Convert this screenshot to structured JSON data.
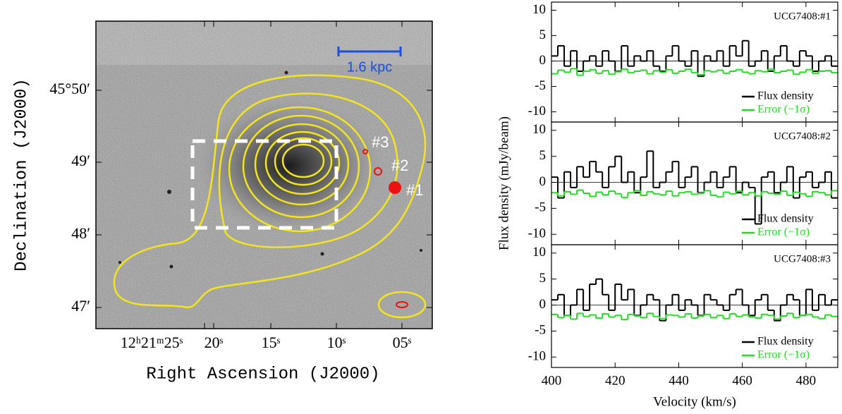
{
  "chart_data": [
    {
      "type": "image",
      "xlabel": "Right Ascension (J2000)",
      "ylabel": "Declination (J2000)",
      "xticks": [
        "12ʰ21ᵐ25ˢ",
        "20ˢ",
        "15ˢ",
        "10ˢ",
        "05ˢ"
      ],
      "yticks": [
        "45°50′",
        "49′",
        "48′",
        "47′"
      ],
      "scale_bar": "1.6 kpc",
      "labels": [
        "#1",
        "#2",
        "#3"
      ]
    },
    {
      "type": "line",
      "step": true,
      "title": "UCG7408:#1",
      "x": [
        400,
        402,
        404,
        406,
        408,
        410,
        412,
        414,
        416,
        418,
        420,
        422,
        424,
        426,
        428,
        430,
        432,
        434,
        436,
        438,
        440,
        442,
        444,
        446,
        448,
        450,
        452,
        454,
        456,
        458,
        460,
        462,
        464,
        466,
        468,
        470,
        472,
        474,
        476,
        478,
        480,
        482,
        484,
        486,
        488
      ],
      "series": [
        {
          "name": "Flux density",
          "color": "#000000",
          "values": [
            1,
            3,
            -1,
            2,
            -2,
            0,
            1,
            -1,
            2,
            0,
            -2,
            3,
            -1,
            1,
            0,
            2,
            -1,
            -2,
            1,
            3,
            0,
            -1,
            2,
            -3,
            1,
            0,
            2,
            -1,
            3,
            1,
            4,
            -1,
            0,
            2,
            -2,
            1,
            3,
            0,
            -1,
            2,
            1,
            -2,
            0,
            1,
            -1
          ]
        },
        {
          "name": "Error (−1σ)",
          "color": "#22dd22",
          "values": [
            -2.5,
            -1.8,
            -2.2,
            -1.5,
            -2.8,
            -2,
            -1.7,
            -2.4,
            -1.9,
            -2.6,
            -2.1,
            -1.6,
            -2.3,
            -2,
            -1.8,
            -2.5,
            -1.9,
            -2.2,
            -1.7,
            -2.4,
            -2,
            -1.6,
            -2.3,
            -2.7,
            -1.9,
            -2.1,
            -1.8,
            -2.4,
            -2,
            -1.7,
            -2.2,
            -2.5,
            -1.9,
            -2.1,
            -1.6,
            -2.3,
            -2,
            -1.8,
            -2.6,
            -2.2,
            -1.7,
            -2.4,
            -2,
            -1.9,
            -2.3
          ]
        }
      ],
      "xlim": [
        400,
        490
      ],
      "ylim": [
        -12,
        11.6
      ],
      "xticks": [
        400,
        420,
        440,
        460,
        480
      ],
      "yticks": [
        -10,
        -5,
        0,
        5,
        10
      ],
      "legend": "lower right"
    },
    {
      "type": "line",
      "step": true,
      "title": "UCG7408:#2",
      "ylabel": "Flux density (mJy/beam)",
      "x": [
        400,
        402,
        404,
        406,
        408,
        410,
        412,
        414,
        416,
        418,
        420,
        422,
        424,
        426,
        428,
        430,
        432,
        434,
        436,
        438,
        440,
        442,
        444,
        446,
        448,
        450,
        452,
        454,
        456,
        458,
        460,
        462,
        464,
        466,
        468,
        470,
        472,
        474,
        476,
        478,
        480,
        482,
        484,
        486,
        488
      ],
      "series": [
        {
          "name": "Flux density",
          "color": "#000000",
          "values": [
            1,
            -3,
            2,
            -1,
            3,
            1,
            4,
            2,
            -1,
            3,
            5,
            0,
            2,
            -2,
            1,
            6,
            -1,
            0,
            2,
            4,
            -1,
            1,
            3,
            -2,
            0,
            2,
            -1,
            1,
            3,
            -2,
            0,
            -1,
            -8,
            1,
            2,
            -2,
            0,
            3,
            -3,
            1,
            2,
            -1,
            0,
            2,
            -3
          ]
        },
        {
          "name": "Error (−1σ)",
          "color": "#22dd22",
          "values": [
            -2,
            -2.6,
            -1.8,
            -2.3,
            -1.5,
            -2.1,
            -2.7,
            -1.9,
            -2.4,
            -1.7,
            -2.2,
            -2.9,
            -2,
            -1.6,
            -2.5,
            -1.8,
            -2.2,
            -2.4,
            -1.7,
            -2.6,
            -2,
            -1.8,
            -2.3,
            -2.1,
            -1.6,
            -2.5,
            -2.8,
            -1.9,
            -2.2,
            -1.7,
            -2.4,
            -2,
            -2.6,
            -1.8,
            -2.1,
            -2.3,
            -1.7,
            -2.5,
            -1.9,
            -2.2,
            -2.7,
            -1.8,
            -2,
            -2.4,
            -1.6
          ]
        }
      ],
      "xlim": [
        400,
        490
      ],
      "ylim": [
        -12,
        11.6
      ],
      "xticks": [
        400,
        420,
        440,
        460,
        480
      ],
      "yticks": [
        -10,
        -5,
        0,
        5,
        10
      ],
      "legend": "lower right"
    },
    {
      "type": "line",
      "step": true,
      "title": "UCG7408:#3",
      "xlabel": "Velocity (km/s)",
      "x": [
        400,
        402,
        404,
        406,
        408,
        410,
        412,
        414,
        416,
        418,
        420,
        422,
        424,
        426,
        428,
        430,
        432,
        434,
        436,
        438,
        440,
        442,
        444,
        446,
        448,
        450,
        452,
        454,
        456,
        458,
        460,
        462,
        464,
        466,
        468,
        470,
        472,
        474,
        476,
        478,
        480,
        482,
        484,
        486,
        488
      ],
      "series": [
        {
          "name": "Flux density",
          "color": "#000000",
          "values": [
            1,
            2,
            -2,
            0,
            3,
            -1,
            4,
            5,
            2,
            -1,
            4,
            1,
            3,
            -2,
            0,
            2,
            1,
            -3,
            0,
            2,
            -1,
            1,
            0,
            -2,
            2,
            1,
            0,
            -1,
            2,
            3,
            0,
            -2,
            1,
            2,
            -1,
            -3,
            0,
            2,
            1,
            -2,
            3,
            -1,
            2,
            0,
            1
          ]
        },
        {
          "name": "Error (−1σ)",
          "color": "#22dd22",
          "values": [
            -1.8,
            -2.4,
            -2,
            -2.7,
            -1.6,
            -2.2,
            -1.9,
            -2.5,
            -1.7,
            -2.3,
            -2,
            -2.8,
            -1.8,
            -2.1,
            -2.4,
            -1.6,
            -2.2,
            -2.6,
            -1.9,
            -2,
            -2.3,
            -1.7,
            -2.5,
            -2.1,
            -1.8,
            -2.4,
            -2,
            -2.6,
            -1.7,
            -2.2,
            -1.9,
            -2.3,
            -2.5,
            -1.8,
            -2,
            -2.7,
            -2.1,
            -1.6,
            -2.4,
            -2,
            -1.8,
            -2.3,
            -2.6,
            -1.9,
            -2.2
          ]
        }
      ],
      "xlim": [
        400,
        490
      ],
      "ylim": [
        -12,
        11.6
      ],
      "xticks": [
        400,
        420,
        440,
        460,
        480
      ],
      "yticks": [
        -10,
        -5,
        0,
        5,
        10
      ],
      "legend": "lower right"
    }
  ]
}
